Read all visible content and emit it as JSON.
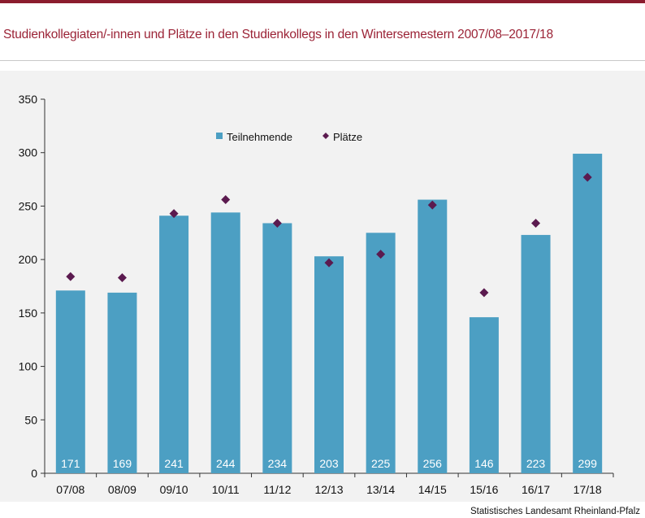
{
  "header": {
    "title": "Studienkollegiaten/-innen und Plätze in den Studienkollegs in den Wintersemestern 2007/08–2017/18"
  },
  "footer": {
    "source": "Statistisches Landesamt Rheinland-Pfalz"
  },
  "colors": {
    "accent": "#8b1c2e",
    "title": "#9b2336",
    "bar": "#4c9fc3",
    "marker": "#5b1a4f",
    "background": "#f2f2f2"
  },
  "chart_data": {
    "type": "bar",
    "categories": [
      "07/08",
      "08/09",
      "09/10",
      "10/11",
      "11/12",
      "12/13",
      "13/14",
      "14/15",
      "15/16",
      "16/17",
      "17/18"
    ],
    "series": [
      {
        "name": "Teilnehmende",
        "type": "bar",
        "values": [
          171,
          169,
          241,
          244,
          234,
          203,
          225,
          256,
          146,
          223,
          299
        ]
      },
      {
        "name": "Plätze",
        "type": "scatter",
        "marker": "diamond",
        "values": [
          184,
          183,
          243,
          256,
          234,
          197,
          205,
          251,
          169,
          234,
          277
        ]
      }
    ],
    "data_labels": [
      "171",
      "169",
      "241",
      "244",
      "234",
      "203",
      "225",
      "256",
      "146",
      "223",
      "299"
    ],
    "yticks": [
      "0",
      "50",
      "100",
      "150",
      "200",
      "250",
      "300",
      "350"
    ],
    "ylim": [
      0,
      350
    ],
    "xlabel": "",
    "ylabel": "",
    "grid": false,
    "legend": "top-center"
  }
}
